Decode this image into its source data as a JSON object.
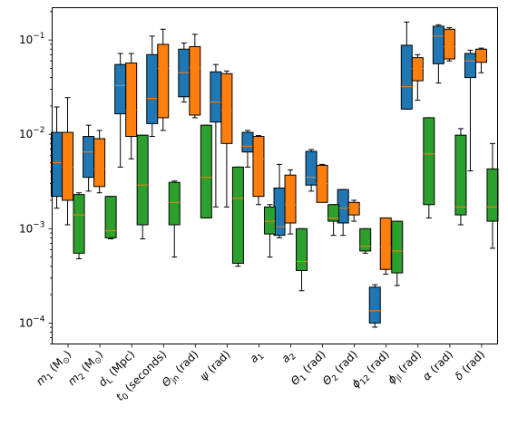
{
  "chart_data": {
    "type": "box",
    "yscale": "log",
    "ylim": [
      6e-05,
      0.22
    ],
    "yticks": [
      {
        "value": 0.0001,
        "base": "10",
        "exp": "−4"
      },
      {
        "value": 0.001,
        "base": "10",
        "exp": "−3"
      },
      {
        "value": 0.01,
        "base": "10",
        "exp": "−2"
      },
      {
        "value": 0.1,
        "base": "10",
        "exp": "−1"
      }
    ],
    "categories": [
      {
        "main": "m",
        "sub": "1",
        "tail": " (M",
        "unit_sub": "⊙",
        "close": ")"
      },
      {
        "main": "m",
        "sub": "2",
        "tail": " (M",
        "unit_sub": "⊙",
        "close": ")"
      },
      {
        "main": "d",
        "sub": "L",
        "tail": " (Mpc)"
      },
      {
        "main": "t",
        "sub": "0",
        "tail": " (seconds)"
      },
      {
        "main": "Θ",
        "sub": "jn",
        "tail": " (rad)"
      },
      {
        "main": "ψ",
        "sub": "",
        "tail": " (rad)"
      },
      {
        "main": "a",
        "sub": "1",
        "tail": ""
      },
      {
        "main": "a",
        "sub": "2",
        "tail": ""
      },
      {
        "main": "Θ",
        "sub": "1",
        "tail": " (rad)"
      },
      {
        "main": "Θ",
        "sub": "2",
        "tail": " (rad)"
      },
      {
        "main": "ϕ",
        "sub": "12",
        "tail": " (rad)"
      },
      {
        "main": "ϕ",
        "sub": "jl",
        "tail": " (rad)"
      },
      {
        "main": "α",
        "sub": "",
        "tail": " (rad)"
      },
      {
        "main": "δ",
        "sub": "",
        "tail": " (rad)"
      }
    ],
    "series": [
      {
        "color": "#1f77b4",
        "boxes": [
          [
            0.00165,
            0.0022,
            0.005,
            0.0105,
            0.0195
          ],
          [
            0.0025,
            0.0035,
            0.0065,
            0.0095,
            0.0125
          ],
          [
            0.0045,
            0.0165,
            0.033,
            0.055,
            0.072
          ],
          [
            0.0095,
            0.013,
            0.024,
            0.07,
            0.11
          ],
          [
            0.022,
            0.025,
            0.045,
            0.08,
            0.093
          ],
          [
            0.0017,
            0.0135,
            0.022,
            0.046,
            0.055
          ],
          [
            0.0045,
            0.0065,
            0.0075,
            0.0105,
            0.011
          ],
          [
            0.0008,
            0.00085,
            0.00105,
            0.0027,
            0.0048
          ],
          [
            0.0025,
            0.0029,
            0.0035,
            0.0066,
            0.0069
          ],
          [
            0.00085,
            0.00115,
            0.00165,
            0.0026,
            0.0026
          ],
          [
            9.05e-05,
            0.0001,
            0.000135,
            0.00024,
            0.000255
          ],
          [
            0.0185,
            0.0185,
            0.032,
            0.088,
            0.155
          ],
          [
            0.035,
            0.056,
            0.11,
            0.14,
            0.145
          ],
          [
            0.0041,
            0.04,
            0.06,
            0.072,
            0.078
          ]
        ]
      },
      {
        "color": "#ff7f0e",
        "boxes": [
          [
            0.0011,
            0.002,
            0.0045,
            0.0105,
            0.0245
          ],
          [
            0.0024,
            0.0028,
            0.0043,
            0.009,
            0.011
          ],
          [
            0.0055,
            0.0095,
            0.018,
            0.057,
            0.072
          ],
          [
            0.011,
            0.015,
            0.05,
            0.09,
            0.13
          ],
          [
            0.015,
            0.016,
            0.051,
            0.085,
            0.115
          ],
          [
            0.0017,
            0.008,
            0.018,
            0.044,
            0.047
          ],
          [
            0.0018,
            0.0022,
            0.0055,
            0.0095,
            0.0097
          ],
          [
            0.00088,
            0.00115,
            0.0018,
            0.0037,
            0.0042
          ],
          [
            0.0022,
            0.0019,
            0.003,
            0.0047,
            0.0048
          ],
          [
            0.0012,
            0.0014,
            0.0017,
            0.0019,
            0.002
          ],
          [
            0.00033,
            0.00037,
            0.00063,
            0.0013,
            0.0013
          ],
          [
            0.023,
            0.037,
            0.05,
            0.065,
            0.07
          ],
          [
            0.06,
            0.063,
            0.085,
            0.13,
            0.135
          ],
          [
            0.045,
            0.058,
            0.064,
            0.08,
            0.082
          ]
        ]
      },
      {
        "color": "#2ca02c",
        "boxes": [
          [
            0.00048,
            0.00055,
            0.0014,
            0.0023,
            0.0024
          ],
          [
            0.00078,
            0.0008,
            0.00095,
            0.0022,
            0.0022
          ],
          [
            0.00078,
            0.0011,
            0.0029,
            0.0098,
            0.0098
          ],
          [
            0.0005,
            0.0011,
            0.0019,
            0.0031,
            0.0032
          ],
          [
            0.0013,
            0.0013,
            0.0035,
            0.0125,
            0.0125
          ],
          [
            0.0004,
            0.00043,
            0.0021,
            0.0045,
            0.0045
          ],
          [
            0.0005,
            0.00088,
            0.0012,
            0.0017,
            0.0018
          ],
          [
            0.00022,
            0.00036,
            0.00045,
            0.001,
            0.001
          ],
          [
            0.00085,
            0.0012,
            0.0013,
            0.0018,
            0.0018
          ],
          [
            0.00055,
            0.00058,
            0.00065,
            0.001,
            0.001
          ],
          [
            0.00025,
            0.00034,
            0.00058,
            0.0012,
            0.0012
          ],
          [
            0.0013,
            0.0018,
            0.0062,
            0.015,
            0.015
          ],
          [
            0.0011,
            0.0014,
            0.0017,
            0.0098,
            0.0115
          ],
          [
            0.00062,
            0.0012,
            0.0017,
            0.0043,
            0.008
          ]
        ]
      }
    ]
  }
}
